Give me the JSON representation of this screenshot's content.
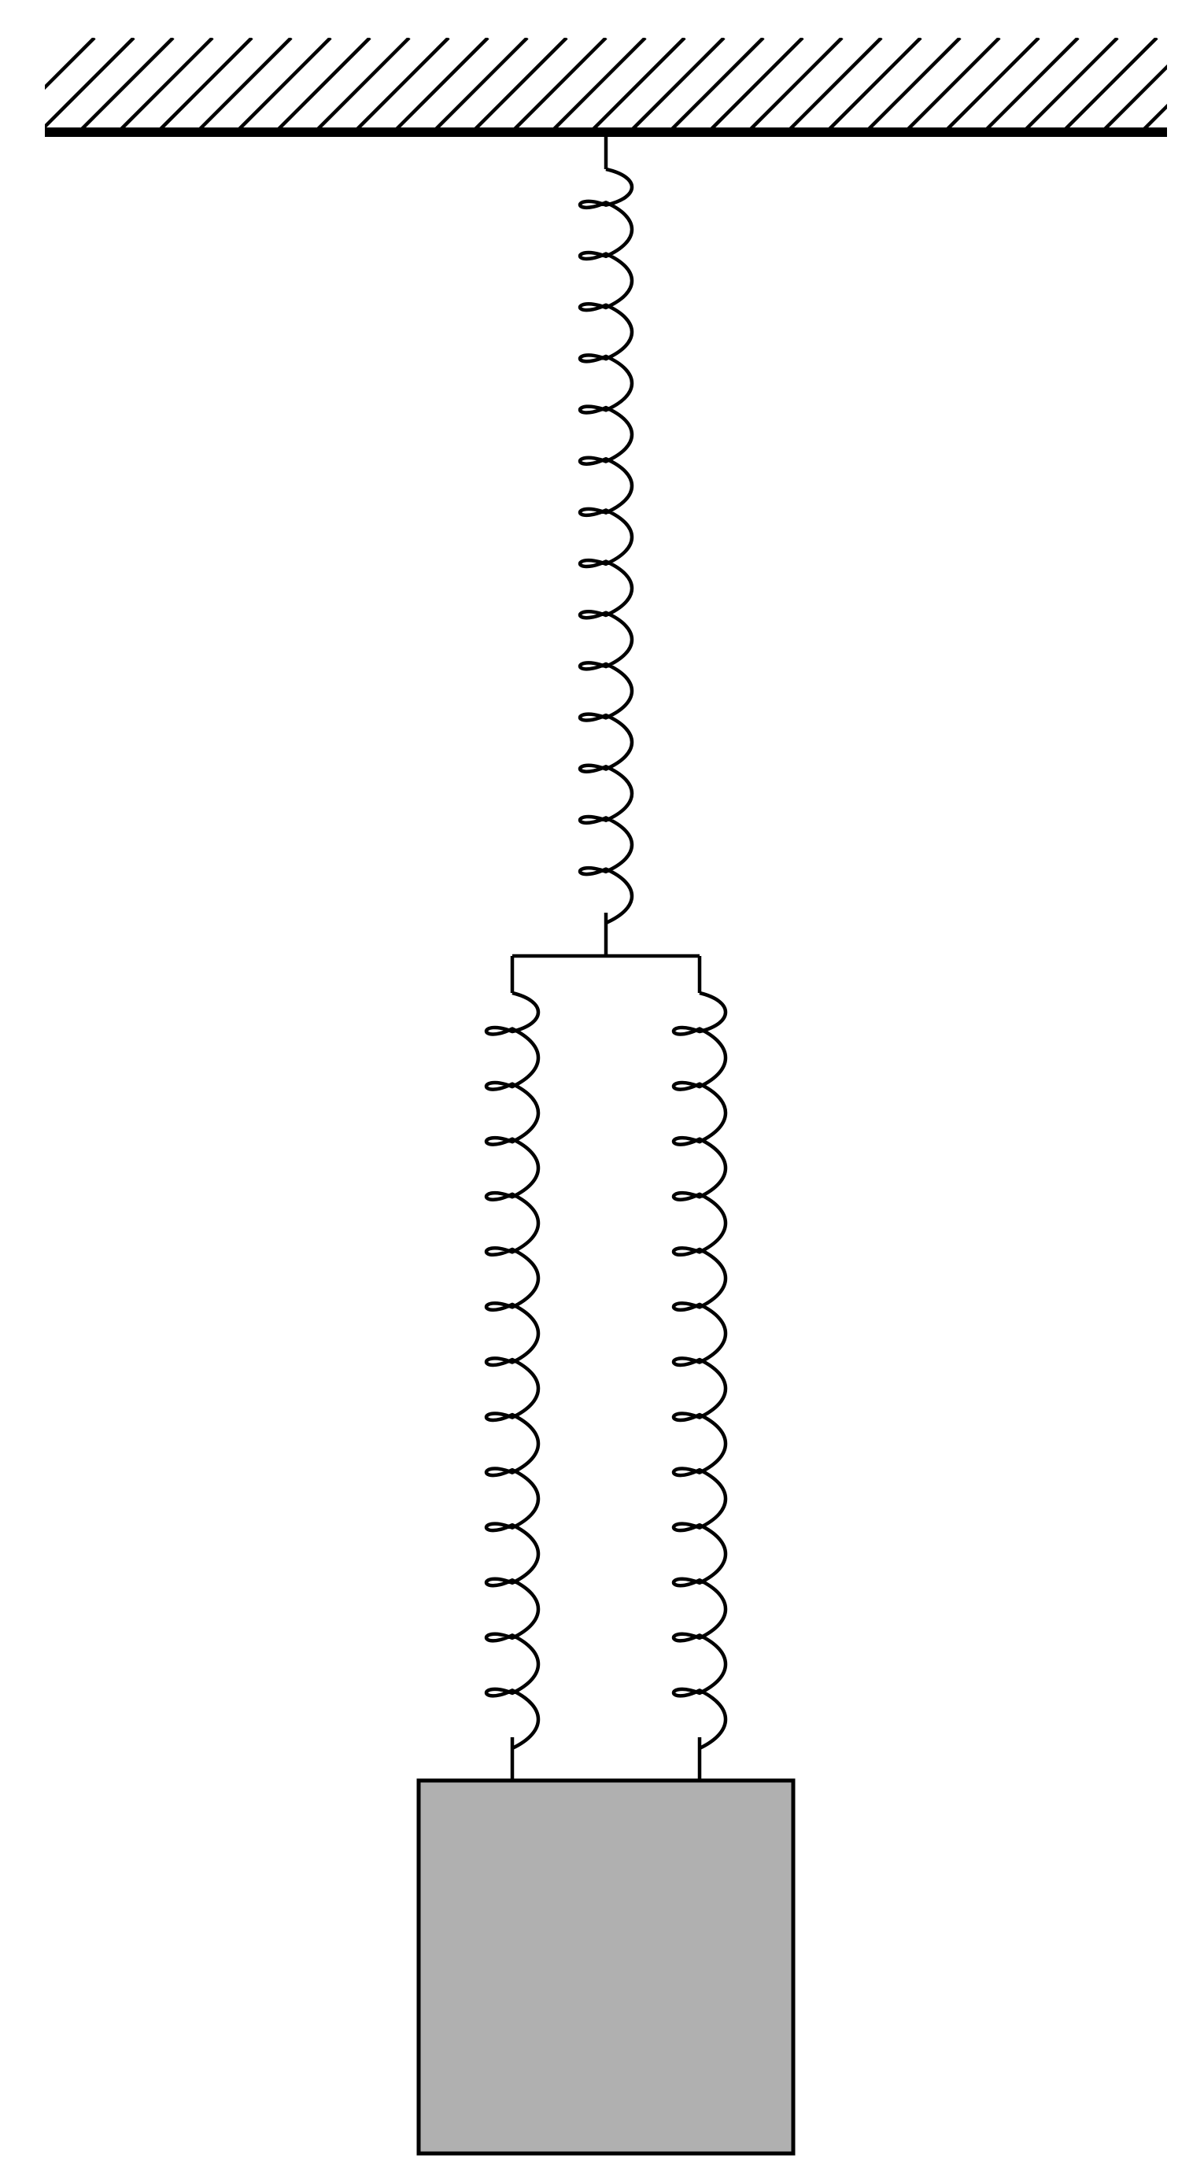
{
  "diagram": {
    "components": [
      {
        "id": "ceiling",
        "kind": "fixed-support",
        "pattern": "hatched"
      },
      {
        "id": "spring-top",
        "kind": "coil-spring",
        "coils": 14,
        "arrangement": "series"
      },
      {
        "id": "spring-bottom-left",
        "kind": "coil-spring",
        "coils": 13,
        "arrangement": "parallel"
      },
      {
        "id": "spring-bottom-right",
        "kind": "coil-spring",
        "coils": 13,
        "arrangement": "parallel"
      },
      {
        "id": "mass",
        "kind": "block"
      }
    ],
    "connections": [
      [
        "ceiling",
        "spring-top"
      ],
      [
        "spring-top",
        "crossbar"
      ],
      [
        "crossbar",
        "spring-bottom-left"
      ],
      [
        "crossbar",
        "spring-bottom-right"
      ],
      [
        "spring-bottom-left",
        "mass"
      ],
      [
        "spring-bottom-right",
        "mass"
      ]
    ]
  },
  "colors": {
    "stroke": "#000000",
    "mass_fill": "#b0b0b0",
    "background": "#ffffff"
  }
}
